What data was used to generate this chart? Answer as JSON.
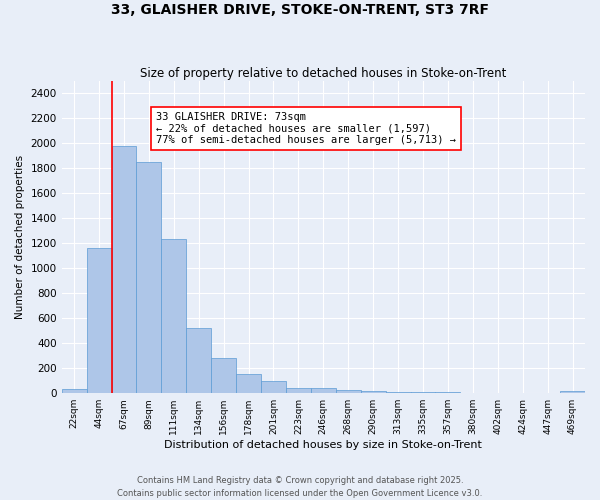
{
  "title": "33, GLAISHER DRIVE, STOKE-ON-TRENT, ST3 7RF",
  "subtitle": "Size of property relative to detached houses in Stoke-on-Trent",
  "xlabel": "Distribution of detached houses by size in Stoke-on-Trent",
  "ylabel": "Number of detached properties",
  "bins": [
    "22sqm",
    "44sqm",
    "67sqm",
    "89sqm",
    "111sqm",
    "134sqm",
    "156sqm",
    "178sqm",
    "201sqm",
    "223sqm",
    "246sqm",
    "268sqm",
    "290sqm",
    "313sqm",
    "335sqm",
    "357sqm",
    "380sqm",
    "402sqm",
    "424sqm",
    "447sqm",
    "469sqm"
  ],
  "values": [
    30,
    1160,
    1980,
    1850,
    1230,
    520,
    280,
    155,
    95,
    42,
    42,
    22,
    18,
    10,
    8,
    6,
    5,
    4,
    3,
    3,
    18
  ],
  "bar_color": "#aec6e8",
  "bar_edge_color": "#5b9bd5",
  "vline_color": "red",
  "vline_x_index": 1.5,
  "annotation_text": "33 GLAISHER DRIVE: 73sqm\n← 22% of detached houses are smaller (1,597)\n77% of semi-detached houses are larger (5,713) →",
  "ylim": [
    0,
    2500
  ],
  "yticks": [
    0,
    200,
    400,
    600,
    800,
    1000,
    1200,
    1400,
    1600,
    1800,
    2000,
    2200,
    2400
  ],
  "background_color": "#e8eef8",
  "grid_color": "#ffffff",
  "footer_line1": "Contains HM Land Registry data © Crown copyright and database right 2025.",
  "footer_line2": "Contains public sector information licensed under the Open Government Licence v3.0."
}
